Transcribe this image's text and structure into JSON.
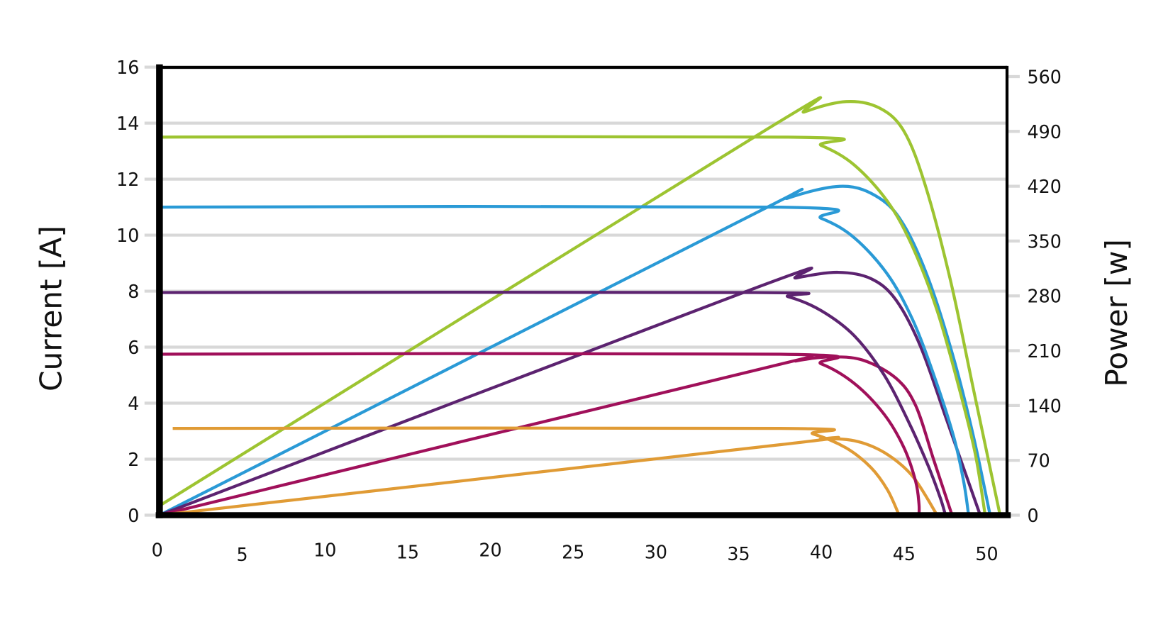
{
  "chart_data": {
    "type": "line",
    "title": "",
    "xlabel": "",
    "ylabel": "Current [A]",
    "y2label": "Power [w]",
    "xlim": [
      0,
      51
    ],
    "ylim": [
      0,
      16
    ],
    "y2lim": [
      0,
      560
    ],
    "x_ticks": [
      "0",
      "5",
      "10",
      "15",
      "20",
      "25",
      "30",
      "35",
      "40",
      "45",
      "50"
    ],
    "y_ticks": [
      "0",
      "2",
      "4",
      "6",
      "8",
      "10",
      "12",
      "14",
      "16"
    ],
    "y2_ticks": [
      "0",
      "70",
      "140",
      "210",
      "280",
      "350",
      "420",
      "490",
      "560"
    ],
    "grid": true,
    "legend": "none",
    "current_curves": [
      {
        "color": "#9dc431",
        "points": [
          [
            0,
            13.5
          ],
          [
            38,
            13.5
          ],
          [
            40,
            13.2
          ],
          [
            42,
            12.5
          ],
          [
            44,
            11.2
          ],
          [
            45.5,
            9.6
          ],
          [
            47,
            7.3
          ],
          [
            48.3,
            4.6
          ],
          [
            49.3,
            2.2
          ],
          [
            49.9,
            0
          ]
        ]
      },
      {
        "color": "#2a9ad6",
        "points": [
          [
            0,
            11
          ],
          [
            37.5,
            11
          ],
          [
            40,
            10.6
          ],
          [
            42,
            9.9
          ],
          [
            44,
            8.6
          ],
          [
            45.5,
            7.0
          ],
          [
            46.8,
            5.0
          ],
          [
            48.0,
            2.8
          ],
          [
            48.6,
            1.2
          ],
          [
            48.9,
            0
          ]
        ]
      },
      {
        "color": "#5c2370",
        "points": [
          [
            0,
            7.95
          ],
          [
            36,
            7.95
          ],
          [
            38,
            7.8
          ],
          [
            40,
            7.3
          ],
          [
            42,
            6.4
          ],
          [
            43.8,
            5.0
          ],
          [
            45.3,
            3.3
          ],
          [
            46.5,
            1.7
          ],
          [
            47.2,
            0.6
          ],
          [
            47.5,
            0
          ]
        ]
      },
      {
        "color": "#a0105a",
        "points": [
          [
            0,
            5.75
          ],
          [
            37.5,
            5.75
          ],
          [
            40,
            5.4
          ],
          [
            42,
            4.7
          ],
          [
            43.8,
            3.6
          ],
          [
            45,
            2.4
          ],
          [
            45.7,
            1.2
          ],
          [
            45.9,
            0.4
          ],
          [
            45.9,
            0
          ]
        ]
      },
      {
        "color": "#e09b35",
        "points": [
          [
            0.8,
            3.1
          ],
          [
            37.5,
            3.1
          ],
          [
            39.5,
            2.9
          ],
          [
            41.5,
            2.4
          ],
          [
            43,
            1.7
          ],
          [
            44,
            0.9
          ],
          [
            44.7,
            0
          ]
        ]
      }
    ],
    "power_curves": [
      {
        "color": "#9dc431",
        "points": [
          [
            0,
            12
          ],
          [
            36.5,
            490
          ],
          [
            39,
            515
          ],
          [
            41.5,
            528
          ],
          [
            43.5,
            520
          ],
          [
            45,
            490
          ],
          [
            46.3,
            420
          ],
          [
            47.8,
            300
          ],
          [
            49.2,
            160
          ],
          [
            50.8,
            0
          ]
        ]
      },
      {
        "color": "#2a9ad6",
        "points": [
          [
            0,
            0
          ],
          [
            35.5,
            380
          ],
          [
            38,
            405
          ],
          [
            41.3,
            420
          ],
          [
            43.5,
            405
          ],
          [
            45,
            370
          ],
          [
            46.5,
            300
          ],
          [
            48,
            200
          ],
          [
            49.2,
            100
          ],
          [
            50.2,
            0
          ]
        ]
      },
      {
        "color": "#5c2370",
        "points": [
          [
            0,
            0
          ],
          [
            36,
            290
          ],
          [
            38.5,
            303
          ],
          [
            41,
            310
          ],
          [
            43,
            302
          ],
          [
            44.5,
            275
          ],
          [
            46,
            215
          ],
          [
            47.6,
            120
          ],
          [
            49.6,
            0
          ]
        ]
      },
      {
        "color": "#a0105a",
        "points": [
          [
            0,
            0
          ],
          [
            36,
            185
          ],
          [
            38.5,
            197
          ],
          [
            40.5,
            202
          ],
          [
            42.5,
            198
          ],
          [
            44.5,
            175
          ],
          [
            45.7,
            140
          ],
          [
            46.8,
            70
          ],
          [
            47.9,
            0
          ]
        ]
      },
      {
        "color": "#e09b35",
        "points": [
          [
            0,
            0
          ],
          [
            37.5,
            90
          ],
          [
            40,
            97
          ],
          [
            42,
            95
          ],
          [
            43.8,
            80
          ],
          [
            45.5,
            50
          ],
          [
            47,
            0
          ]
        ]
      }
    ]
  }
}
